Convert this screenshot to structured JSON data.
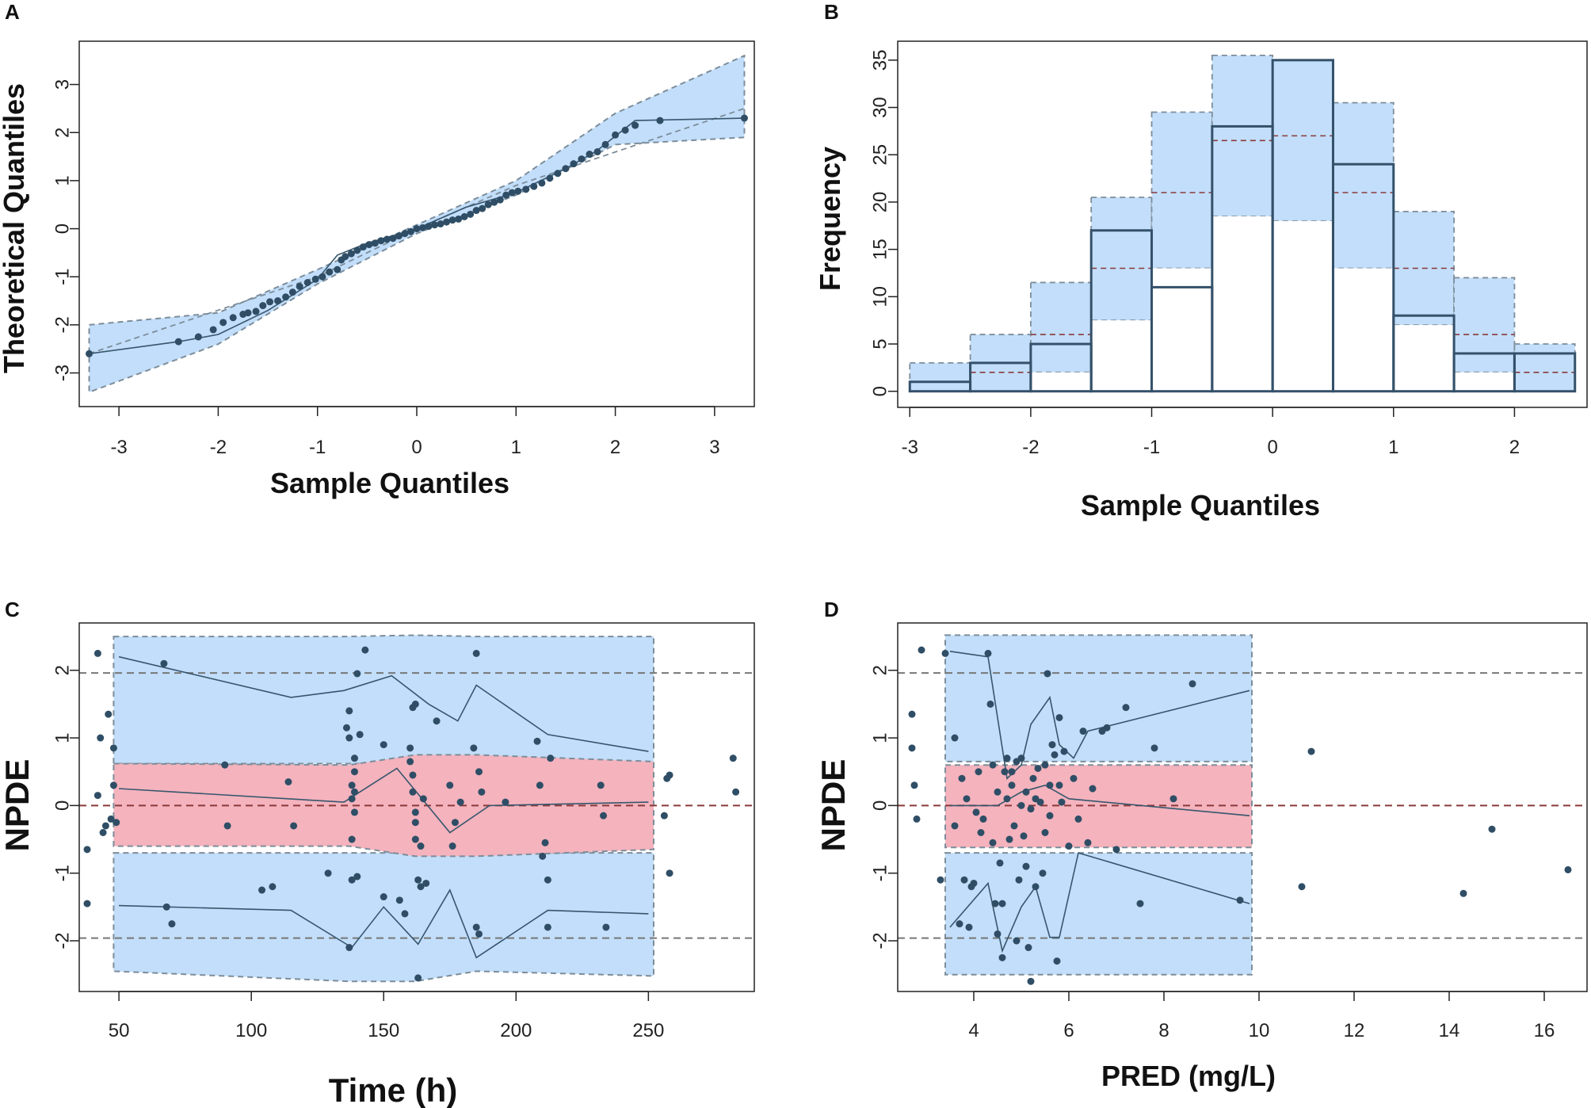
{
  "colors": {
    "band_blue": "#c2defa",
    "band_red": "#f4b3bd",
    "band_edge": "#7d8d9a",
    "point": "#2f4e66",
    "line": "#37566d",
    "ref_line": "#8a3a3a",
    "bin_edge": "#34516a"
  },
  "chart_data": [
    {
      "panel": "A",
      "type": "scatter",
      "xlabel": "Sample Quantiles",
      "ylabel": "Theoretical Quantiles",
      "xlim": [
        -3.4,
        3.4
      ],
      "ylim": [
        -3.7,
        3.9
      ],
      "xticks": [
        "-3",
        "-2",
        "-1",
        "0",
        "1",
        "2",
        "3"
      ],
      "yticks": [
        "-3",
        "-2",
        "-1",
        "0",
        "1",
        "2",
        "3"
      ],
      "band_upper": [
        [
          -3.3,
          -2.0
        ],
        [
          -2.0,
          -1.75
        ],
        [
          -1.0,
          -0.85
        ],
        [
          0.0,
          0.08
        ],
        [
          1.0,
          1.0
        ],
        [
          2.0,
          2.4
        ],
        [
          3.3,
          3.6
        ]
      ],
      "band_lower": [
        [
          -3.3,
          -3.4
        ],
        [
          -2.0,
          -2.4
        ],
        [
          -1.0,
          -1.15
        ],
        [
          0.0,
          -0.1
        ],
        [
          1.0,
          0.7
        ],
        [
          2.0,
          1.75
        ],
        [
          3.3,
          1.9
        ]
      ],
      "ref_line": [
        [
          -3.3,
          -2.6
        ],
        [
          -1.0,
          -1.0
        ],
        [
          0.0,
          0.0
        ],
        [
          1.0,
          0.9
        ],
        [
          3.3,
          2.5
        ]
      ],
      "trend_line": [
        [
          -3.3,
          -2.6
        ],
        [
          -2.4,
          -2.35
        ],
        [
          -2.0,
          -2.2
        ],
        [
          -1.5,
          -1.7
        ],
        [
          -1.0,
          -1.05
        ],
        [
          -0.8,
          -0.55
        ],
        [
          -0.5,
          -0.3
        ],
        [
          0.0,
          0.0
        ],
        [
          0.5,
          0.45
        ],
        [
          1.0,
          0.75
        ],
        [
          1.5,
          1.25
        ],
        [
          1.8,
          1.6
        ],
        [
          2.2,
          2.25
        ],
        [
          3.3,
          2.3
        ]
      ],
      "points_x": [
        -3.3,
        -2.4,
        -2.2,
        -2.05,
        -1.95,
        -1.85,
        -1.75,
        -1.7,
        -1.62,
        -1.55,
        -1.48,
        -1.4,
        -1.32,
        -1.25,
        -1.18,
        -1.1,
        -1.02,
        -0.95,
        -0.88,
        -0.8,
        -0.76,
        -0.72,
        -0.66,
        -0.6,
        -0.54,
        -0.48,
        -0.42,
        -0.36,
        -0.3,
        -0.24,
        -0.18,
        -0.12,
        -0.06,
        0.0,
        0.06,
        0.12,
        0.18,
        0.24,
        0.3,
        0.36,
        0.42,
        0.48,
        0.54,
        0.6,
        0.66,
        0.72,
        0.78,
        0.84,
        0.9,
        0.96,
        1.02,
        1.1,
        1.18,
        1.26,
        1.34,
        1.42,
        1.5,
        1.58,
        1.66,
        1.74,
        1.82,
        1.9,
        2.0,
        2.1,
        2.2,
        2.45,
        3.3
      ],
      "points_y": [
        -2.6,
        -2.35,
        -2.25,
        -2.1,
        -1.95,
        -1.85,
        -1.78,
        -1.75,
        -1.72,
        -1.6,
        -1.52,
        -1.5,
        -1.42,
        -1.32,
        -1.2,
        -1.12,
        -1.05,
        -1.0,
        -0.9,
        -0.85,
        -0.65,
        -0.58,
        -0.52,
        -0.45,
        -0.38,
        -0.33,
        -0.3,
        -0.25,
        -0.22,
        -0.2,
        -0.15,
        -0.1,
        -0.06,
        0.0,
        0.02,
        0.05,
        0.08,
        0.1,
        0.14,
        0.18,
        0.2,
        0.25,
        0.3,
        0.38,
        0.42,
        0.5,
        0.55,
        0.6,
        0.7,
        0.75,
        0.78,
        0.82,
        0.88,
        0.95,
        1.05,
        1.15,
        1.25,
        1.35,
        1.45,
        1.55,
        1.6,
        1.75,
        1.95,
        2.05,
        2.15,
        2.25,
        2.3
      ]
    },
    {
      "panel": "B",
      "type": "bar",
      "xlabel": "Sample Quantiles",
      "ylabel": "Frequency",
      "xlim": [
        -3.1,
        2.6
      ],
      "ylim": [
        -1.7,
        37
      ],
      "xticks": [
        "-3",
        "-2",
        "-1",
        "0",
        "1",
        "2"
      ],
      "yticks": [
        "0",
        "5",
        "10",
        "15",
        "20",
        "25",
        "30",
        "35"
      ],
      "bin_edges": [
        -3.0,
        -2.5,
        -2.0,
        -1.5,
        -1.0,
        -0.5,
        0.0,
        0.5,
        1.0,
        1.5,
        2.0,
        2.5
      ],
      "counts": [
        1,
        3,
        5,
        17,
        11,
        28,
        35,
        24,
        8,
        4,
        4
      ],
      "band_low": [
        0,
        0,
        2,
        7.5,
        13,
        18.5,
        18,
        13,
        7,
        2,
        0
      ],
      "band_median": [
        1,
        2,
        6,
        13,
        21,
        26.5,
        27,
        21,
        13,
        6,
        2
      ],
      "band_high": [
        3,
        6,
        11.5,
        20.5,
        29.5,
        35.5,
        35,
        30.5,
        19,
        12,
        5
      ]
    },
    {
      "panel": "C",
      "type": "scatter",
      "xlabel": "Time (h)",
      "ylabel": "NPDE",
      "xlim": [
        35,
        290
      ],
      "ylim": [
        -2.75,
        2.7
      ],
      "xticks": [
        "50",
        "100",
        "150",
        "200",
        "250"
      ],
      "yticks": [
        "-2",
        "-1",
        "0",
        "1",
        "2"
      ],
      "ref_lines": [
        -1.96,
        0,
        1.96
      ],
      "band_x": [
        48,
        137,
        162,
        185,
        252
      ],
      "outer_upper_hi": [
        2.5,
        2.5,
        2.52,
        2.5,
        2.5
      ],
      "outer_upper_lo": [
        0.62,
        0.62,
        0.62,
        0.62,
        0.62
      ],
      "outer_lower_hi": [
        -0.7,
        -0.7,
        -0.7,
        -0.7,
        -0.7
      ],
      "outer_lower_lo": [
        -2.45,
        -2.6,
        -2.6,
        -2.45,
        -2.52
      ],
      "mid_upper": [
        0.62,
        0.6,
        0.75,
        0.75,
        0.65
      ],
      "mid_lower": [
        -0.6,
        -0.6,
        -0.75,
        -0.75,
        -0.65
      ],
      "med_upper": [
        [
          50,
          2.2
        ],
        [
          115,
          1.6
        ],
        [
          135,
          1.7
        ],
        [
          153,
          1.92
        ],
        [
          167,
          1.5
        ],
        [
          178,
          1.25
        ],
        [
          185,
          1.78
        ],
        [
          212,
          1.05
        ],
        [
          250,
          0.8
        ]
      ],
      "med_mid": [
        [
          50,
          0.25
        ],
        [
          135,
          0.05
        ],
        [
          155,
          0.55
        ],
        [
          175,
          -0.4
        ],
        [
          190,
          0.0
        ],
        [
          250,
          0.05
        ]
      ],
      "med_lower": [
        [
          50,
          -1.48
        ],
        [
          115,
          -1.55
        ],
        [
          138,
          -2.1
        ],
        [
          150,
          -1.5
        ],
        [
          163,
          -2.05
        ],
        [
          175,
          -1.25
        ],
        [
          185,
          -2.25
        ],
        [
          212,
          -1.55
        ],
        [
          250,
          -1.6
        ]
      ],
      "points_x": [
        38,
        38,
        42,
        43,
        44,
        46,
        47,
        48,
        48,
        49,
        42,
        45,
        67,
        68,
        70,
        90,
        91,
        104,
        108,
        116,
        114,
        129,
        136,
        137,
        137,
        137,
        138,
        138,
        138,
        138,
        139,
        139,
        139,
        139,
        140,
        140,
        141,
        143,
        150,
        150,
        156,
        158,
        160,
        160,
        161,
        161,
        161,
        162,
        162,
        162,
        162,
        163,
        163,
        164,
        164,
        165,
        166,
        170,
        175,
        176,
        177,
        179,
        184,
        185,
        185,
        186,
        186,
        187,
        196,
        208,
        209,
        210,
        211,
        212,
        212,
        213,
        232,
        233,
        234,
        256,
        257,
        258,
        258,
        282,
        283
      ],
      "points_y": [
        -0.65,
        -1.45,
        2.25,
        1.0,
        -0.4,
        1.35,
        -0.2,
        0.3,
        0.85,
        -0.25,
        0.15,
        -0.3,
        2.1,
        -1.5,
        -1.75,
        0.6,
        -0.3,
        -1.25,
        -1.2,
        -0.3,
        0.35,
        -1.0,
        1.15,
        1.4,
        -2.1,
        1.0,
        0.3,
        0.1,
        -0.5,
        -1.1,
        0.5,
        0.2,
        -0.1,
        0.7,
        -1.05,
        1.95,
        1.05,
        2.3,
        -1.35,
        0.9,
        -1.4,
        -1.6,
        0.85,
        0.65,
        0.45,
        0.2,
        1.45,
        1.5,
        -0.1,
        -0.25,
        -0.5,
        -1.1,
        -2.55,
        -1.2,
        -0.6,
        0.1,
        -1.15,
        1.25,
        0.3,
        -0.6,
        -0.25,
        0.05,
        0.85,
        2.25,
        -1.8,
        -1.9,
        0.5,
        0.2,
        0.05,
        0.95,
        0.3,
        -0.75,
        -0.55,
        -1.1,
        -1.8,
        0.7,
        0.3,
        -0.15,
        -1.8,
        -0.15,
        0.4,
        0.45,
        -1.0,
        0.7,
        0.2
      ]
    },
    {
      "panel": "D",
      "type": "scatter",
      "xlabel": "PRED (mg/L)",
      "ylabel": "NPDE",
      "xlim": [
        2.4,
        16.9
      ],
      "ylim": [
        -2.75,
        2.7
      ],
      "xticks": [
        "4",
        "6",
        "8",
        "10",
        "12",
        "14",
        "16"
      ],
      "yticks": [
        "-2",
        "-1",
        "0",
        "1",
        "2"
      ],
      "ref_lines": [
        -1.96,
        0,
        1.96
      ],
      "band_x": [
        3.4,
        9.85
      ],
      "outer_upper_hi": [
        2.52,
        2.52
      ],
      "outer_upper_lo": [
        0.65,
        0.65
      ],
      "outer_lower_hi": [
        -0.7,
        -0.7
      ],
      "outer_lower_lo": [
        -2.5,
        -2.5
      ],
      "mid_upper": [
        0.6,
        0.6
      ],
      "mid_lower": [
        -0.62,
        -0.62
      ],
      "med_upper": [
        [
          3.5,
          2.28
        ],
        [
          4.3,
          2.2
        ],
        [
          4.7,
          0.4
        ],
        [
          5.0,
          0.6
        ],
        [
          5.2,
          1.2
        ],
        [
          5.6,
          1.6
        ],
        [
          5.8,
          0.9
        ],
        [
          6.1,
          0.7
        ],
        [
          6.4,
          1.1
        ],
        [
          9.8,
          1.7
        ]
      ],
      "med_mid": [
        [
          3.5,
          0.0
        ],
        [
          4.5,
          0.0
        ],
        [
          5.0,
          0.2
        ],
        [
          5.5,
          0.3
        ],
        [
          6.0,
          0.1
        ],
        [
          9.8,
          -0.15
        ]
      ],
      "med_lower": [
        [
          3.5,
          -1.8
        ],
        [
          4.3,
          -1.15
        ],
        [
          4.6,
          -2.15
        ],
        [
          5.0,
          -1.5
        ],
        [
          5.3,
          -1.2
        ],
        [
          5.6,
          -1.95
        ],
        [
          5.8,
          -1.95
        ],
        [
          6.2,
          -0.7
        ],
        [
          9.8,
          -1.45
        ]
      ],
      "points_x": [
        2.7,
        2.75,
        2.8,
        2.7,
        2.9,
        3.3,
        3.4,
        3.6,
        3.6,
        3.7,
        3.75,
        3.8,
        3.85,
        3.9,
        3.95,
        4.0,
        4.05,
        4.1,
        4.15,
        4.2,
        4.3,
        4.35,
        4.4,
        4.4,
        4.45,
        4.5,
        4.5,
        4.55,
        4.6,
        4.6,
        4.65,
        4.7,
        4.7,
        4.75,
        4.8,
        4.8,
        4.85,
        4.9,
        4.9,
        4.95,
        5.0,
        5.0,
        5.05,
        5.1,
        5.1,
        5.15,
        5.2,
        5.2,
        5.25,
        5.3,
        5.3,
        5.35,
        5.4,
        5.45,
        5.5,
        5.5,
        5.55,
        5.6,
        5.6,
        5.65,
        5.7,
        5.75,
        5.8,
        5.8,
        5.85,
        5.9,
        6.0,
        6.1,
        6.2,
        6.3,
        6.4,
        6.5,
        6.7,
        6.8,
        7.0,
        7.2,
        7.5,
        7.8,
        8.2,
        8.6,
        9.6,
        10.9,
        11.1,
        14.3,
        14.9,
        16.5
      ],
      "points_y": [
        0.85,
        0.3,
        -0.2,
        1.35,
        2.3,
        -1.1,
        2.25,
        1.0,
        -0.3,
        -1.75,
        0.4,
        -1.1,
        0.1,
        -1.8,
        -1.2,
        -1.15,
        -0.1,
        0.5,
        -0.4,
        -0.2,
        2.25,
        1.5,
        0.6,
        -0.55,
        -1.45,
        -1.9,
        0.2,
        -0.85,
        -2.25,
        -1.45,
        0.5,
        0.1,
        0.7,
        -0.5,
        0.3,
        0.5,
        -0.3,
        -2.0,
        0.65,
        -1.1,
        0.0,
        0.7,
        -0.45,
        0.2,
        -0.9,
        -2.1,
        -0.05,
        -2.6,
        0.4,
        -1.2,
        0.1,
        0.55,
        0.05,
        -1.0,
        0.6,
        -0.4,
        1.95,
        0.3,
        -0.15,
        0.9,
        0.75,
        -2.3,
        1.3,
        0.3,
        0.05,
        0.8,
        -0.6,
        0.4,
        -0.2,
        1.1,
        -0.55,
        0.25,
        1.1,
        1.15,
        -0.65,
        1.45,
        -1.45,
        0.85,
        0.1,
        1.8,
        -1.4,
        -1.2,
        0.8,
        -1.3,
        -0.35,
        -0.95
      ]
    }
  ]
}
